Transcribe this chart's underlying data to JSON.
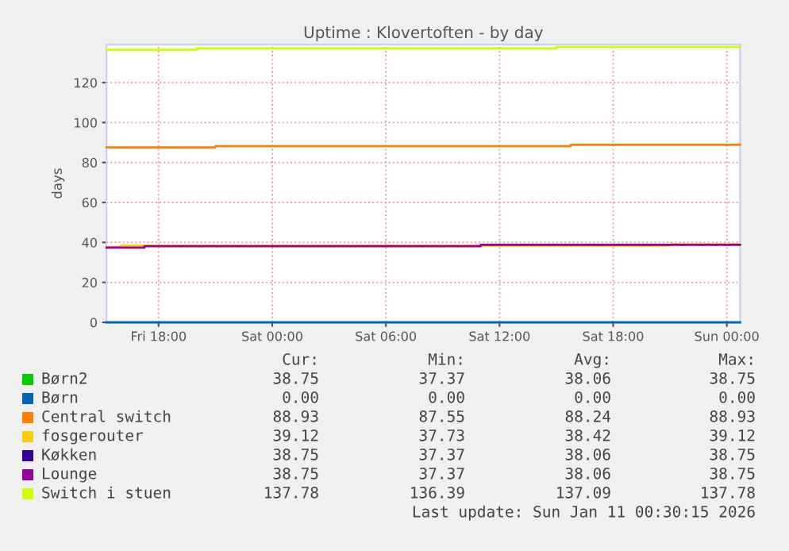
{
  "chart_data": {
    "type": "step",
    "title": "Uptime : Klovertoften - by day",
    "ylabel": "days",
    "xlim": [
      "2026-01-09T15:15",
      "2026-01-11T00:42"
    ],
    "xticks": [
      {
        "value": "2026-01-09T18:00",
        "label": "Fri 18:00"
      },
      {
        "value": "2026-01-10T00:00",
        "label": "Sat 00:00"
      },
      {
        "value": "2026-01-10T06:00",
        "label": "Sat 06:00"
      },
      {
        "value": "2026-01-10T12:00",
        "label": "Sat 12:00"
      },
      {
        "value": "2026-01-10T18:00",
        "label": "Sat 18:00"
      },
      {
        "value": "2026-01-11T00:00",
        "label": "Sun 00:00"
      }
    ],
    "ylim": [
      0,
      139
    ],
    "yticks": [
      0,
      20,
      40,
      60,
      80,
      100,
      120
    ],
    "grid": true,
    "legend": "bottom",
    "series": [
      {
        "name": "Børn2",
        "color": "#00cc00"
      },
      {
        "name": "Børn",
        "color": "#0066b3",
        "x": [
          "2026-01-09T15:15",
          "2026-01-11T00:42"
        ],
        "values": [
          0,
          0
        ]
      },
      {
        "name": "Central switch",
        "color": "#ff8000",
        "x": [
          "2026-01-09T15:15",
          "2026-01-09T21:00",
          "2026-01-10T15:45",
          "2026-01-11T00:42"
        ],
        "values": [
          87.6,
          88.2,
          88.9,
          88.9
        ]
      },
      {
        "name": "fosgerouter",
        "color": "#ffcc00",
        "x": [
          "2026-01-09T15:15",
          "2026-01-09T16:00",
          "2026-01-10T21:00",
          "2026-01-11T00:42"
        ],
        "values": [
          37.7,
          38.4,
          39.1,
          39.1
        ]
      },
      {
        "name": "Køkken",
        "color": "#330099"
      },
      {
        "name": "Lounge",
        "color": "#990099",
        "x": [
          "2026-01-09T15:15",
          "2026-01-09T17:15",
          "2026-01-10T11:00",
          "2026-01-11T00:42"
        ],
        "values": [
          37.4,
          38.1,
          38.8,
          38.8
        ]
      },
      {
        "name": "Switch i stuen",
        "color": "#ccff00",
        "x": [
          "2026-01-09T15:15",
          "2026-01-09T20:00",
          "2026-01-10T15:00",
          "2026-01-11T00:42"
        ],
        "values": [
          136.4,
          137.1,
          137.8,
          137.8
        ]
      }
    ],
    "annotations": [
      "Cur:",
      "Min:",
      "Avg:",
      "Max:",
      "38.75",
      "37.37",
      "38.06",
      "38.75",
      "0.00",
      "0.00",
      "0.00",
      "0.00",
      "88.93",
      "87.55",
      "88.24",
      "88.93",
      "39.12",
      "37.73",
      "38.42",
      "39.12",
      "38.75",
      "37.37",
      "38.06",
      "38.75",
      "38.75",
      "37.37",
      "38.06",
      "38.75",
      "137.78",
      "136.39",
      "137.09",
      "137.78",
      "Last update: Sun Jan 11 00:30:15 2026"
    ]
  }
}
